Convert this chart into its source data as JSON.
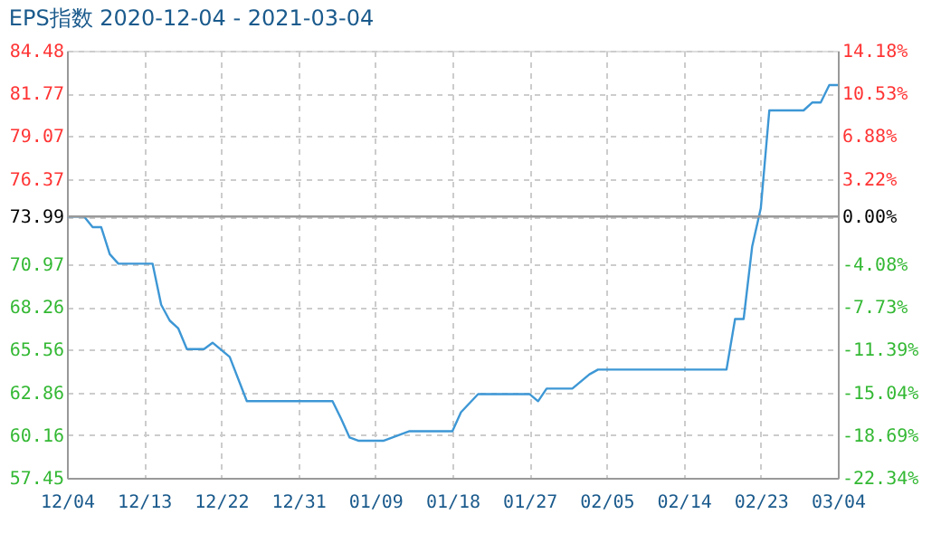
{
  "chart_data": {
    "type": "line",
    "title": "EPS指数 2020-12-04 - 2021-03-04",
    "x": [
      "2020-12-04",
      "2020-12-06",
      "2020-12-07",
      "2020-12-08",
      "2020-12-09",
      "2020-12-10",
      "2020-12-14",
      "2020-12-15",
      "2020-12-16",
      "2020-12-17",
      "2020-12-18",
      "2020-12-20",
      "2020-12-21",
      "2020-12-23",
      "2020-12-25",
      "2021-01-04",
      "2021-01-05",
      "2021-01-06",
      "2021-01-07",
      "2021-01-10",
      "2021-01-12",
      "2021-01-13",
      "2021-01-18",
      "2021-01-19",
      "2021-01-21",
      "2021-01-27",
      "2021-01-28",
      "2021-01-29",
      "2021-02-01",
      "2021-02-03",
      "2021-02-04",
      "2021-02-19",
      "2021-02-20",
      "2021-02-21",
      "2021-02-22",
      "2021-02-23",
      "2021-02-24",
      "2021-02-28",
      "2021-03-01",
      "2021-03-02",
      "2021-03-03",
      "2021-03-04"
    ],
    "series": [
      {
        "color": "#3d97d5",
        "values": [
          73.99,
          73.99,
          73.31,
          73.31,
          71.6,
          71.0,
          71.0,
          68.4,
          67.4,
          66.9,
          65.6,
          65.6,
          66.0,
          65.1,
          62.3,
          62.3,
          61.2,
          60.0,
          59.8,
          59.8,
          60.2,
          60.4,
          60.4,
          61.6,
          62.75,
          62.75,
          62.3,
          63.1,
          63.1,
          64.0,
          64.3,
          64.3,
          67.5,
          67.5,
          72.1,
          74.5,
          80.7,
          80.7,
          81.2,
          81.2,
          82.3,
          82.3
        ]
      }
    ],
    "xlim": [
      "2020-12-04",
      "2021-03-04"
    ],
    "xticks": [
      {
        "value": "2020-12-04",
        "label": "12/04"
      },
      {
        "value": "2020-12-13",
        "label": "12/13"
      },
      {
        "value": "2020-12-22",
        "label": "12/22"
      },
      {
        "value": "2020-12-31",
        "label": "12/31"
      },
      {
        "value": "2021-01-09",
        "label": "01/09"
      },
      {
        "value": "2021-01-18",
        "label": "01/18"
      },
      {
        "value": "2021-01-27",
        "label": "01/27"
      },
      {
        "value": "2021-02-05",
        "label": "02/05"
      },
      {
        "value": "2021-02-14",
        "label": "02/14"
      },
      {
        "value": "2021-02-23",
        "label": "02/23"
      },
      {
        "value": "2021-03-04",
        "label": "03/04"
      }
    ],
    "ylim": [
      57.45,
      84.48
    ],
    "yticks": [
      57.45,
      60.16,
      62.86,
      65.56,
      68.26,
      70.97,
      73.99,
      76.37,
      79.07,
      81.77,
      84.48
    ],
    "y2lim": [
      -22.34,
      14.18
    ],
    "y2ticks": [
      {
        "value": -22.34,
        "label": "-22.34%"
      },
      {
        "value": -18.69,
        "label": "-18.69%"
      },
      {
        "value": -15.04,
        "label": "-15.04%"
      },
      {
        "value": -11.39,
        "label": "-11.39%"
      },
      {
        "value": -7.73,
        "label": "-7.73%"
      },
      {
        "value": -4.08,
        "label": "-4.08%"
      },
      {
        "value": 0.0,
        "label": "0.00%"
      },
      {
        "value": 3.22,
        "label": "3.22%"
      },
      {
        "value": 6.88,
        "label": "6.88%"
      },
      {
        "value": 10.53,
        "label": "10.53%"
      },
      {
        "value": 14.18,
        "label": "14.18%"
      }
    ],
    "ref_lines": [
      {
        "axis": "y",
        "value": 73.99,
        "color": "#999999"
      }
    ],
    "grid": true,
    "marker": "none",
    "line_style": "solid"
  }
}
